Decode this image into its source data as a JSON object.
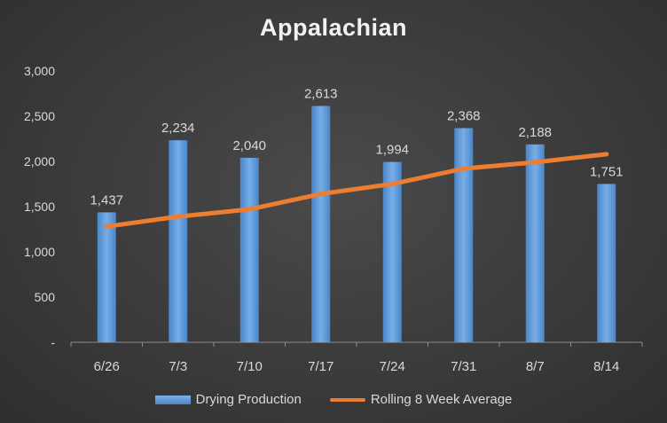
{
  "chart_data": {
    "type": "bar",
    "title": "Appalachian",
    "categories": [
      "6/26",
      "7/3",
      "7/10",
      "7/17",
      "7/24",
      "7/31",
      "8/7",
      "8/14"
    ],
    "series": [
      {
        "name": "Drying Production",
        "type": "bar",
        "values": [
          1437,
          2234,
          2040,
          2613,
          1994,
          2368,
          2188,
          1751
        ],
        "data_labels": [
          "1,437",
          "2,234",
          "2,040",
          "2,613",
          "1,994",
          "2,368",
          "2,188",
          "1,751"
        ],
        "color": "#5b9bd5"
      },
      {
        "name": "Rolling 8 Week Average",
        "type": "line",
        "values": [
          1280,
          1390,
          1470,
          1640,
          1750,
          1920,
          1990,
          2080
        ],
        "color": "#ed7d31"
      }
    ],
    "ylim": [
      0,
      3000
    ],
    "yticks": [
      0,
      500,
      1000,
      1500,
      2000,
      2500,
      3000
    ],
    "ytick_labels": [
      "-",
      "500",
      "1,000",
      "1,500",
      "2,000",
      "2,500",
      "3,000"
    ],
    "grid": false,
    "legend": "bottom"
  }
}
